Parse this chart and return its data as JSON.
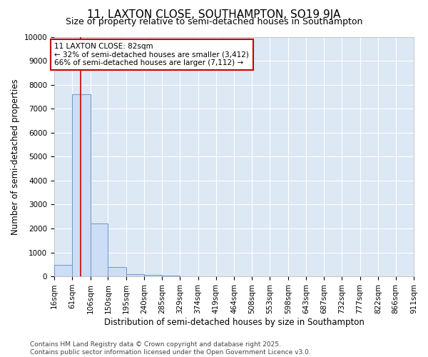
{
  "title": "11, LAXTON CLOSE, SOUTHAMPTON, SO19 9JA",
  "subtitle": "Size of property relative to semi-detached houses in Southampton",
  "xlabel": "Distribution of semi-detached houses by size in Southampton",
  "ylabel": "Number of semi-detached properties",
  "bin_edges": [
    16,
    61,
    106,
    150,
    195,
    240,
    285,
    329,
    374,
    419,
    464,
    508,
    553,
    598,
    643,
    687,
    732,
    777,
    822,
    866,
    911
  ],
  "bar_heights": [
    490,
    7600,
    2200,
    380,
    100,
    50,
    20,
    10,
    8,
    6,
    5,
    4,
    3,
    3,
    2,
    2,
    2,
    1,
    1,
    1
  ],
  "bar_color": "#ccddf5",
  "bar_edge_color": "#6699cc",
  "property_size": 82,
  "property_line_color": "#cc0000",
  "annotation_text": "11 LAXTON CLOSE: 82sqm\n← 32% of semi-detached houses are smaller (3,412)\n66% of semi-detached houses are larger (7,112) →",
  "annotation_box_color": "#cc0000",
  "ylim": [
    0,
    10000
  ],
  "yticks": [
    0,
    1000,
    2000,
    3000,
    4000,
    5000,
    6000,
    7000,
    8000,
    9000,
    10000
  ],
  "footer": "Contains HM Land Registry data © Crown copyright and database right 2025.\nContains public sector information licensed under the Open Government Licence v3.0.",
  "bg_color": "#ffffff",
  "plot_bg_color": "#dde8f5",
  "grid_color": "#ffffff",
  "title_fontsize": 11,
  "subtitle_fontsize": 9,
  "axis_label_fontsize": 8.5,
  "tick_fontsize": 7.5,
  "annotation_fontsize": 7.5,
  "footer_fontsize": 6.5
}
